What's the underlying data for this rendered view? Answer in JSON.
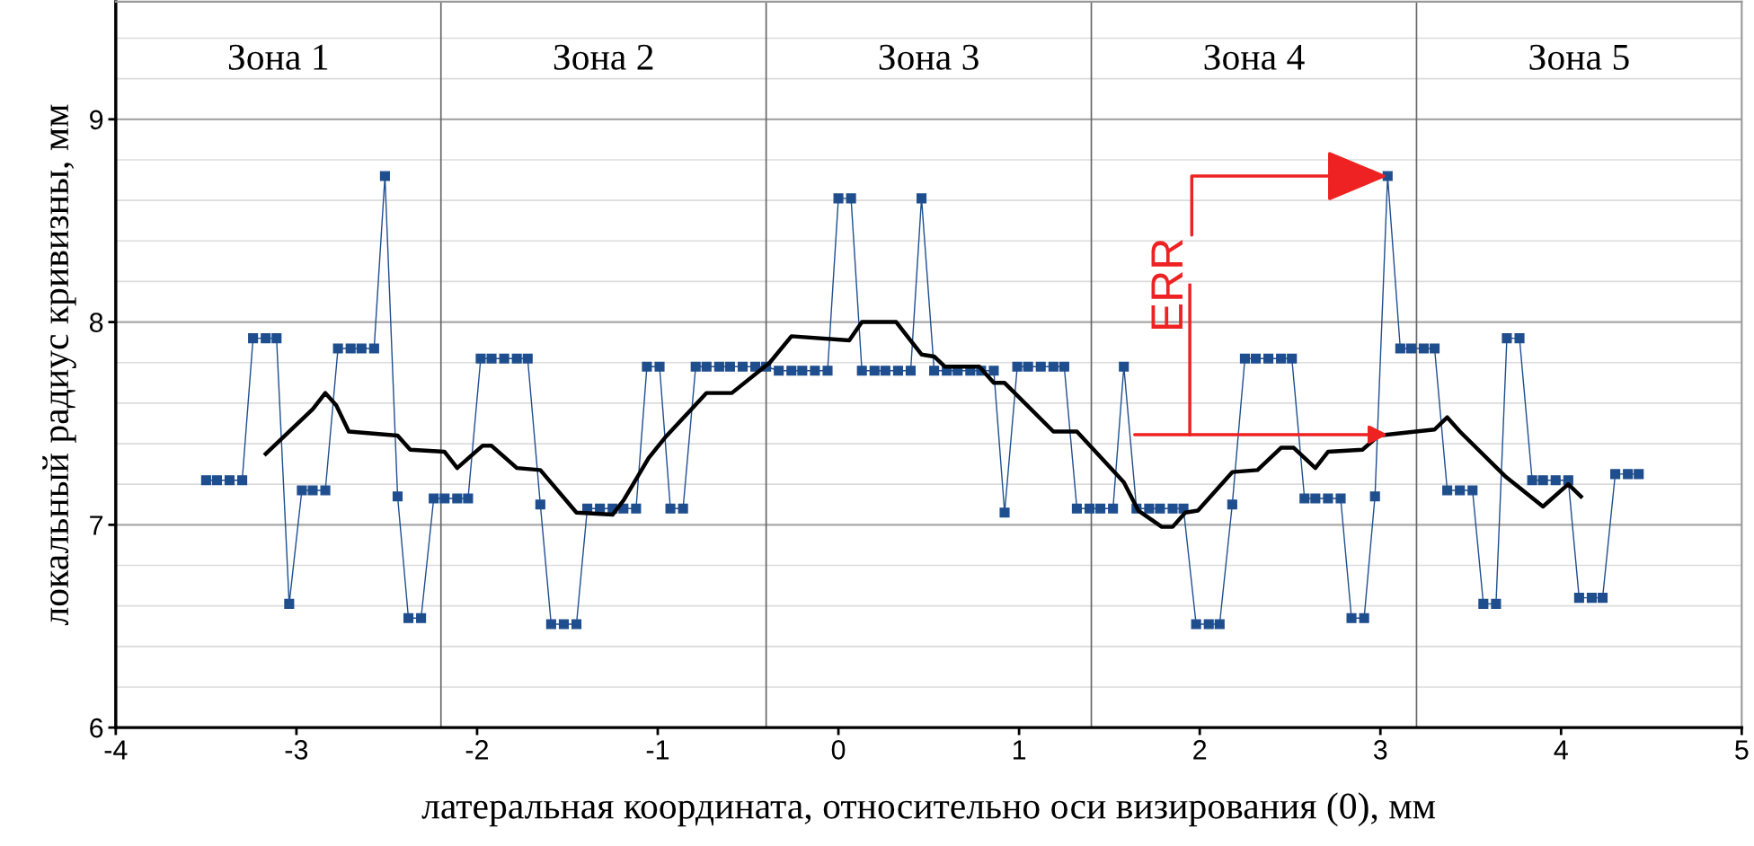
{
  "chart_data": {
    "type": "line",
    "xlabel": "латеральная координата, относительно оси визирования (0), мм",
    "ylabel": "локальный радиус кривизны, мм",
    "xlim": [
      -4,
      5
    ],
    "xticks": [
      -4,
      -3,
      -2,
      -1,
      0,
      1,
      2,
      3,
      4,
      5
    ],
    "ylim": [
      6,
      9.58
    ],
    "yticks": [
      6,
      7,
      8,
      9
    ],
    "grid": "y",
    "legend": false,
    "line_style": "solid",
    "ref_lines": [
      {
        "axis": "x",
        "value": -2.2
      },
      {
        "axis": "x",
        "value": -0.4
      },
      {
        "axis": "x",
        "value": 1.4
      },
      {
        "axis": "x",
        "value": 3.2
      }
    ],
    "annotations": [
      "Зона 1",
      "Зона 2",
      "Зона 3",
      "Зона 4",
      "Зона 5",
      {
        "text": "ERR",
        "x": 3.04,
        "y": 8.72
      }
    ],
    "series": [
      {
        "color": "#1f4e8e",
        "marker": "square",
        "x": [
          -3.5,
          -3.44,
          -3.37,
          -3.3,
          -3.24,
          -3.17,
          -3.11,
          -3.04,
          -2.97,
          -2.91,
          -2.84,
          -2.77,
          -2.7,
          -2.64,
          -2.57,
          -2.51,
          -2.44,
          -2.38,
          -2.31,
          -2.24,
          -2.18,
          -2.11,
          -2.05,
          -1.98,
          -1.92,
          -1.85,
          -1.78,
          -1.72,
          -1.65,
          -1.59,
          -1.52,
          -1.45,
          -1.39,
          -1.32,
          -1.25,
          -1.19,
          -1.12,
          -1.06,
          -0.99,
          -0.93,
          -0.86,
          -0.79,
          -0.73,
          -0.66,
          -0.6,
          -0.53,
          -0.46,
          -0.4,
          -0.33,
          -0.26,
          -0.2,
          -0.13,
          -0.06,
          0.0,
          0.07,
          0.13,
          0.2,
          0.26,
          0.33,
          0.4,
          0.46,
          0.53,
          0.6,
          0.66,
          0.73,
          0.79,
          0.86,
          0.92,
          0.99,
          1.05,
          1.12,
          1.19,
          1.25,
          1.32,
          1.39,
          1.45,
          1.52,
          1.58,
          1.65,
          1.72,
          1.78,
          1.85,
          1.91,
          1.98,
          2.05,
          2.11,
          2.18,
          2.25,
          2.31,
          2.38,
          2.45,
          2.51,
          2.58,
          2.64,
          2.71,
          2.78,
          2.84,
          2.91,
          2.97,
          3.04,
          3.11,
          3.17,
          3.24,
          3.3,
          3.37,
          3.44,
          3.51,
          3.57,
          3.64,
          3.7,
          3.77,
          3.84,
          3.9,
          3.97,
          4.04,
          4.1,
          4.17,
          4.23,
          4.3,
          4.37,
          4.43
        ],
        "values": [
          7.22,
          7.22,
          7.22,
          7.22,
          7.92,
          7.92,
          7.92,
          6.61,
          7.17,
          7.17,
          7.17,
          7.87,
          7.87,
          7.87,
          7.87,
          8.72,
          7.14,
          6.54,
          6.54,
          7.13,
          7.13,
          7.13,
          7.13,
          7.82,
          7.82,
          7.82,
          7.82,
          7.82,
          7.1,
          6.51,
          6.51,
          6.51,
          7.08,
          7.08,
          7.08,
          7.08,
          7.08,
          7.78,
          7.78,
          7.08,
          7.08,
          7.78,
          7.78,
          7.78,
          7.78,
          7.78,
          7.78,
          7.78,
          7.76,
          7.76,
          7.76,
          7.76,
          7.76,
          8.61,
          8.61,
          7.76,
          7.76,
          7.76,
          7.76,
          7.76,
          8.61,
          7.76,
          7.76,
          7.76,
          7.76,
          7.76,
          7.76,
          7.06,
          7.78,
          7.78,
          7.78,
          7.78,
          7.78,
          7.08,
          7.08,
          7.08,
          7.08,
          7.78,
          7.08,
          7.08,
          7.08,
          7.08,
          7.08,
          6.51,
          6.51,
          6.51,
          7.1,
          7.82,
          7.82,
          7.82,
          7.82,
          7.82,
          7.13,
          7.13,
          7.13,
          7.13,
          6.54,
          6.54,
          7.14,
          8.72,
          7.87,
          7.87,
          7.87,
          7.87,
          7.17,
          7.17,
          7.17,
          6.61,
          6.61,
          7.92,
          7.92,
          7.22,
          7.22,
          7.22,
          7.22,
          6.64,
          6.64,
          6.64,
          7.25,
          7.25,
          7.25
        ]
      },
      {
        "color": "#000000",
        "marker": "none",
        "x": [
          -3.17,
          -2.91,
          -2.84,
          -2.78,
          -2.71,
          -2.44,
          -2.37,
          -2.18,
          -2.11,
          -1.97,
          -1.92,
          -1.78,
          -1.65,
          -1.45,
          -1.25,
          -1.19,
          -1.05,
          -0.96,
          -0.73,
          -0.59,
          -0.38,
          -0.26,
          0.06,
          0.13,
          0.32,
          0.46,
          0.53,
          0.59,
          0.78,
          0.86,
          0.92,
          1.19,
          1.32,
          1.58,
          1.66,
          1.79,
          1.85,
          1.92,
          1.99,
          2.18,
          2.32,
          2.45,
          2.52,
          2.64,
          2.71,
          2.9,
          2.99,
          3.3,
          3.37,
          3.44,
          3.69,
          3.9,
          4.04,
          4.11
        ],
        "values": [
          7.35,
          7.57,
          7.65,
          7.59,
          7.46,
          7.44,
          7.37,
          7.36,
          7.28,
          7.39,
          7.39,
          7.28,
          7.27,
          7.06,
          7.05,
          7.12,
          7.33,
          7.43,
          7.65,
          7.65,
          7.8,
          7.93,
          7.91,
          8.0,
          8.0,
          7.84,
          7.83,
          7.78,
          7.78,
          7.7,
          7.7,
          7.46,
          7.46,
          7.21,
          7.07,
          6.99,
          6.99,
          7.06,
          7.07,
          7.26,
          7.27,
          7.38,
          7.38,
          7.28,
          7.36,
          7.37,
          7.44,
          7.47,
          7.53,
          7.46,
          7.24,
          7.09,
          7.2,
          7.14
        ]
      }
    ]
  }
}
